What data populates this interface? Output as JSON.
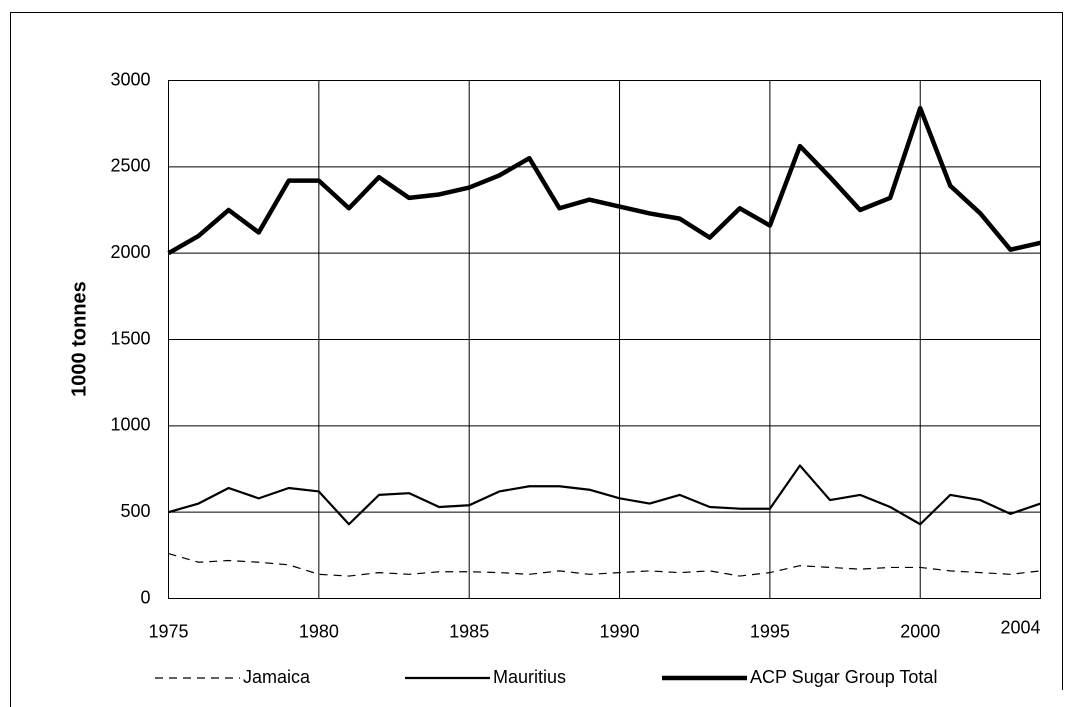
{
  "chart_data": {
    "type": "line",
    "ylabel": "1000 tonnes",
    "x": [
      1975,
      1976,
      1977,
      1978,
      1979,
      1980,
      1981,
      1982,
      1983,
      1984,
      1985,
      1986,
      1987,
      1988,
      1989,
      1990,
      1991,
      1992,
      1993,
      1994,
      1995,
      1996,
      1997,
      1998,
      1999,
      2000,
      2001,
      2002,
      2003,
      2004
    ],
    "series": [
      {
        "name": "Jamaica",
        "color": "#000000",
        "dashed": true,
        "values": [
          260,
          210,
          220,
          210,
          195,
          140,
          130,
          150,
          140,
          155,
          155,
          150,
          140,
          160,
          140,
          150,
          160,
          150,
          160,
          130,
          150,
          190,
          180,
          170,
          180,
          180,
          160,
          150,
          140,
          160
        ]
      },
      {
        "name": "Mauritius",
        "color": "#000000",
        "values": [
          500,
          550,
          640,
          580,
          640,
          620,
          430,
          600,
          610,
          530,
          540,
          620,
          650,
          650,
          630,
          580,
          550,
          600,
          530,
          520,
          520,
          770,
          570,
          600,
          530,
          430,
          600,
          570,
          490,
          550
        ]
      },
      {
        "name": "ACP Sugar Group Total",
        "color": "#000000",
        "values": [
          2000,
          2100,
          2250,
          2120,
          2420,
          2420,
          2260,
          2440,
          2320,
          2340,
          2380,
          2450,
          2550,
          2260,
          2310,
          2270,
          2230,
          2200,
          2090,
          2260,
          2160,
          2620,
          2440,
          2250,
          2320,
          2840,
          2390,
          2230,
          2020,
          2060
        ]
      }
    ],
    "xlim": [
      1975,
      2004
    ],
    "xticks": [
      1975,
      1980,
      1985,
      1990,
      1995,
      2000,
      2004
    ],
    "ylim": [
      0,
      3000
    ],
    "yticks": [
      0,
      500,
      1000,
      1500,
      2000,
      2500,
      3000
    ],
    "grid": true,
    "legend": "bottom"
  }
}
